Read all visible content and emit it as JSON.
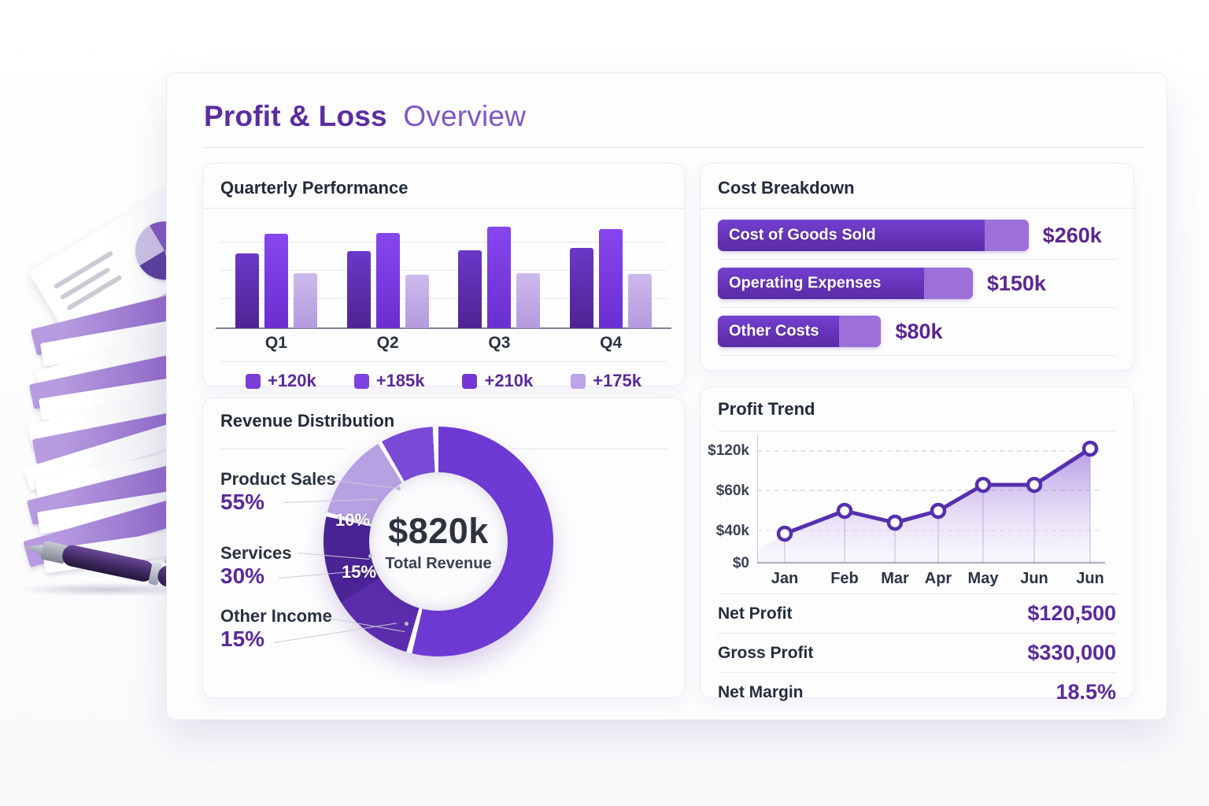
{
  "page_title": {
    "bold": "Profit & Loss",
    "light": "Overview"
  },
  "colors": {
    "accent_deep": "#5b2a9b",
    "accent_bright": "#7a3fd9",
    "lavender": "#c3aee6",
    "title_bold": "#5b2da2",
    "title_light": "#7e57c8"
  },
  "chart_data": [
    {
      "type": "bar",
      "title": "Quarterly Performance",
      "categories": [
        "Q1",
        "Q2",
        "Q3",
        "Q4"
      ],
      "ylim": [
        0,
        220
      ],
      "grid": true,
      "series": [
        {
          "name": "primary",
          "color": "#6a38c8",
          "color_dark": "#4e2492",
          "values": [
            147,
            152,
            153,
            158
          ]
        },
        {
          "name": "bright",
          "color": "#8746ee",
          "color_dark": "#6a2fd0",
          "values": [
            186,
            187,
            200,
            195
          ]
        },
        {
          "name": "light",
          "color": "#cdbaec",
          "color_dark": "#b39ade",
          "values": [
            108,
            105,
            108,
            107
          ]
        }
      ],
      "legend": [
        {
          "label": "+120k",
          "color": "#7a3fd9"
        },
        {
          "label": "+185k",
          "color": "#7f42e2"
        },
        {
          "label": "+210k",
          "color": "#7436d4"
        },
        {
          "label": "+175k",
          "color": "#bca4e6"
        }
      ],
      "legend_position": "bottom"
    },
    {
      "type": "bar",
      "orientation": "horizontal",
      "title": "Cost Breakdown",
      "rows": [
        {
          "label": "Cost of Goods Sold",
          "value": "$260k",
          "value_k": 260,
          "bar_pct": 78,
          "dark_pct": 86
        },
        {
          "label": "Operating Expenses",
          "value": "$150k",
          "value_k": 150,
          "bar_pct": 64,
          "dark_pct": 81
        },
        {
          "label": "Other Costs",
          "value": "$80k",
          "value_k": 80,
          "bar_pct": 41,
          "dark_pct": 74
        }
      ],
      "bar_color": "#6d3ac9",
      "cap_color": "#9d6fd8"
    },
    {
      "type": "pie",
      "title": "Revenue Distribution",
      "center_value": "$820k",
      "center_label": "Total Revenue",
      "legend": [
        {
          "label": "Product Sales",
          "pct": "55%",
          "value": 55
        },
        {
          "label": "Services",
          "pct": "30%",
          "value": 30
        },
        {
          "label": "Other Income",
          "pct": "15%",
          "value": 15
        }
      ],
      "slice_labels": [
        "10%",
        "15%"
      ],
      "visual_segments": [
        {
          "color": "#6e3ad4",
          "pct": 53.7
        },
        {
          "color": "#ffffff",
          "pct": 0.8
        },
        {
          "color": "#5b2cab",
          "pct": 11.6
        },
        {
          "color": "#4a2394",
          "pct": 12.4
        },
        {
          "color": "#ffffff",
          "pct": 0.6
        },
        {
          "color": "#b7a1e3",
          "pct": 12.1
        },
        {
          "color": "#ffffff",
          "pct": 0.6
        },
        {
          "color": "#7a49d6",
          "pct": 7.4
        },
        {
          "color": "#ffffff",
          "pct": 0.8
        }
      ]
    },
    {
      "type": "area",
      "title": "Profit Trend",
      "x": [
        "Jan",
        "Feb",
        "Mar",
        "Apr",
        "May",
        "Jun",
        "Jun"
      ],
      "values_k": [
        36,
        50,
        44,
        50,
        69,
        68,
        124
      ],
      "y_ticks": [
        "$120k",
        "$60k",
        "$40k",
        "$0"
      ],
      "line_color": "#5530ae",
      "fill_top": "#8a5fd6",
      "fill_bottom": "#cbb8ec",
      "summary": [
        {
          "label": "Net Profit",
          "value": "$120,500"
        },
        {
          "label": "Gross Profit",
          "value": "$330,000"
        },
        {
          "label": "Net Margin",
          "value": "18.5%"
        }
      ]
    }
  ]
}
